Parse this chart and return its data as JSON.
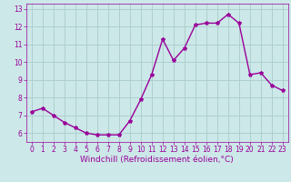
{
  "x": [
    0,
    1,
    2,
    3,
    4,
    5,
    6,
    7,
    8,
    9,
    10,
    11,
    12,
    13,
    14,
    15,
    16,
    17,
    18,
    19,
    20,
    21,
    22,
    23
  ],
  "y": [
    7.2,
    7.4,
    7.0,
    6.6,
    6.3,
    6.0,
    5.9,
    5.9,
    5.9,
    6.7,
    7.9,
    9.3,
    11.3,
    10.1,
    10.8,
    12.1,
    12.2,
    12.2,
    12.7,
    12.2,
    9.3,
    9.4,
    8.7,
    8.4
  ],
  "line_color": "#990099",
  "marker": "*",
  "marker_size": 3,
  "bg_color": "#cce8e8",
  "grid_color": "#aacccc",
  "xlabel": "Windchill (Refroidissement éolien,°C)",
  "xlabel_color": "#990099",
  "tick_color": "#990099",
  "ylim": [
    5.5,
    13.3
  ],
  "xlim": [
    -0.5,
    23.5
  ],
  "yticks": [
    6,
    7,
    8,
    9,
    10,
    11,
    12,
    13
  ],
  "xticks": [
    0,
    1,
    2,
    3,
    4,
    5,
    6,
    7,
    8,
    9,
    10,
    11,
    12,
    13,
    14,
    15,
    16,
    17,
    18,
    19,
    20,
    21,
    22,
    23
  ],
  "tick_fontsize": 5.5,
  "xlabel_fontsize": 6.5,
  "line_width": 1.0
}
